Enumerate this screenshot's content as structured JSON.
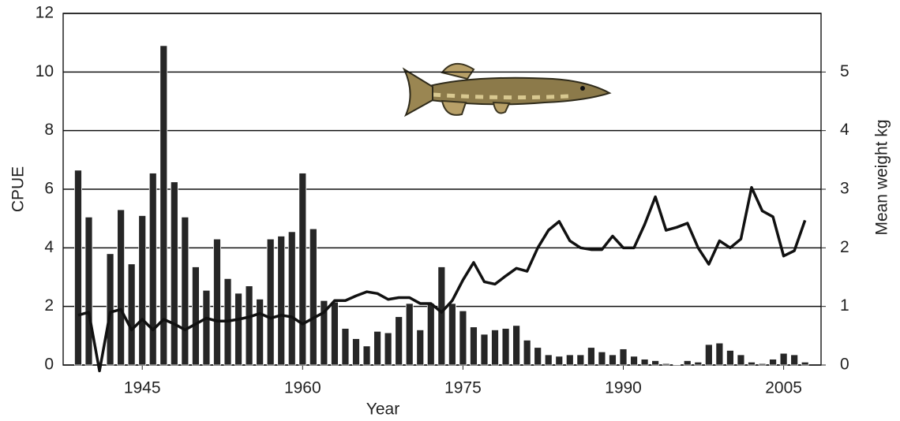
{
  "chart_data": {
    "type": "bar",
    "x_label": "Year",
    "y_label": "CPUE",
    "y2_label": "Mean weight kg",
    "x": [
      1939,
      1940,
      1941,
      1942,
      1943,
      1944,
      1945,
      1946,
      1947,
      1948,
      1949,
      1950,
      1951,
      1952,
      1953,
      1954,
      1955,
      1956,
      1957,
      1958,
      1959,
      1960,
      1961,
      1962,
      1963,
      1964,
      1965,
      1966,
      1967,
      1968,
      1969,
      1970,
      1971,
      1972,
      1973,
      1974,
      1975,
      1976,
      1977,
      1978,
      1979,
      1980,
      1981,
      1982,
      1983,
      1984,
      1985,
      1986,
      1987,
      1988,
      1989,
      1990,
      1991,
      1992,
      1993,
      1994,
      1995,
      1996,
      1997,
      1998,
      1999,
      2000,
      2001,
      2002,
      2003,
      2004,
      2005,
      2006,
      2007
    ],
    "series": [
      {
        "type": "bar",
        "color": "#262626",
        "values": [
          6.65,
          5.05,
          null,
          3.8,
          5.3,
          3.45,
          5.1,
          6.55,
          10.9,
          6.25,
          5.05,
          3.35,
          2.55,
          4.3,
          2.95,
          2.45,
          2.7,
          2.25,
          4.3,
          4.4,
          4.55,
          6.55,
          4.65,
          2.2,
          2.15,
          1.25,
          0.9,
          0.65,
          1.15,
          1.1,
          1.65,
          2.1,
          1.2,
          2.1,
          3.35,
          2.1,
          1.85,
          1.3,
          1.05,
          1.2,
          1.25,
          1.35,
          0.85,
          0.6,
          0.35,
          0.3,
          0.35,
          0.35,
          0.6,
          0.45,
          0.35,
          0.55,
          0.3,
          0.2,
          0.15,
          0.05,
          0.02,
          0.15,
          0.1,
          0.7,
          0.75,
          0.5,
          0.35,
          0.1,
          0.05,
          0.2,
          0.4,
          0.35,
          0.1
        ]
      },
      {
        "type": "line",
        "axis": "y2",
        "color": "#111111",
        "values": [
          0.85,
          0.9,
          -0.1,
          0.9,
          0.95,
          0.6,
          0.78,
          0.6,
          0.78,
          0.7,
          0.6,
          0.7,
          0.8,
          0.75,
          0.75,
          0.78,
          0.82,
          0.88,
          0.8,
          0.85,
          0.82,
          0.7,
          0.8,
          0.9,
          1.1,
          1.1,
          1.18,
          1.25,
          1.22,
          1.12,
          1.15,
          1.15,
          1.05,
          1.05,
          0.9,
          1.1,
          1.45,
          1.75,
          1.42,
          1.38,
          1.52,
          1.65,
          1.6,
          2.0,
          2.3,
          2.45,
          2.12,
          2.0,
          1.97,
          1.97,
          2.2,
          2.0,
          2.0,
          2.4,
          2.87,
          2.3,
          2.35,
          2.42,
          2.0,
          1.72,
          2.12,
          2.0,
          2.15,
          3.03,
          2.63,
          2.53,
          1.86,
          1.95,
          2.47
        ]
      }
    ],
    "xlim": [
      1937.6,
      2008.5
    ],
    "xticks": [
      1945,
      1960,
      1975,
      1990,
      2005
    ],
    "ylim": [
      0,
      12
    ],
    "yticks": [
      0,
      2,
      4,
      6,
      8,
      10,
      12
    ],
    "y2lim": [
      0,
      6
    ],
    "y2ticks": [
      0,
      1,
      2,
      3,
      4,
      5
    ],
    "grid": true
  }
}
